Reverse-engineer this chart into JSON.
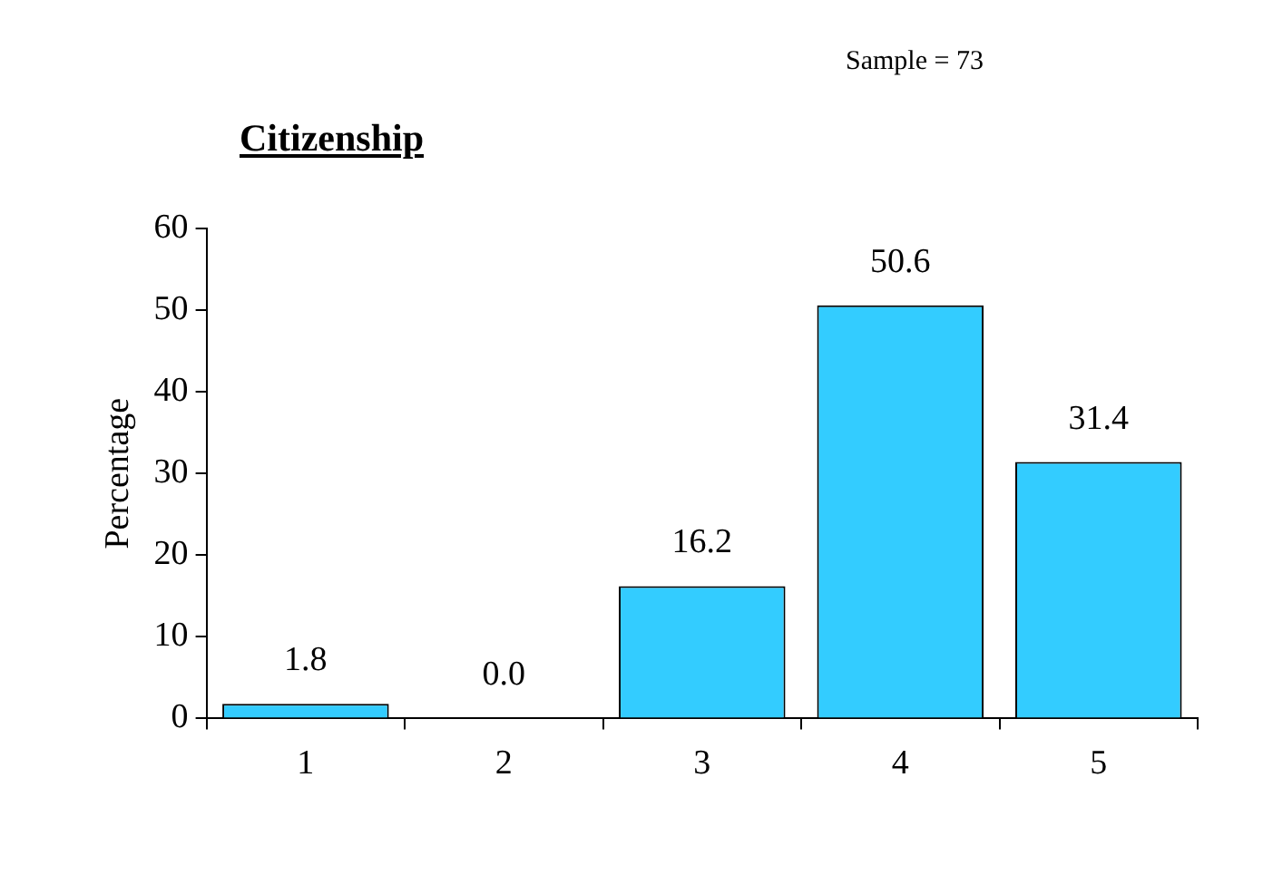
{
  "chart_data": {
    "type": "bar",
    "title": "Citizenship",
    "ylabel": "Percentage",
    "annotations": [
      "Sample = 73"
    ],
    "categories": [
      "1",
      "2",
      "3",
      "4",
      "5"
    ],
    "values": [
      1.8,
      0,
      16.2,
      50.6,
      31.4
    ],
    "value_labels": [
      "1.8",
      "0.0",
      "16.2",
      "50.6",
      "31.4"
    ],
    "color": "#33ccff",
    "ylim": [
      0,
      60
    ],
    "yticks": [
      0,
      10,
      20,
      30,
      40,
      50,
      60
    ],
    "grid": false,
    "legend": false
  }
}
